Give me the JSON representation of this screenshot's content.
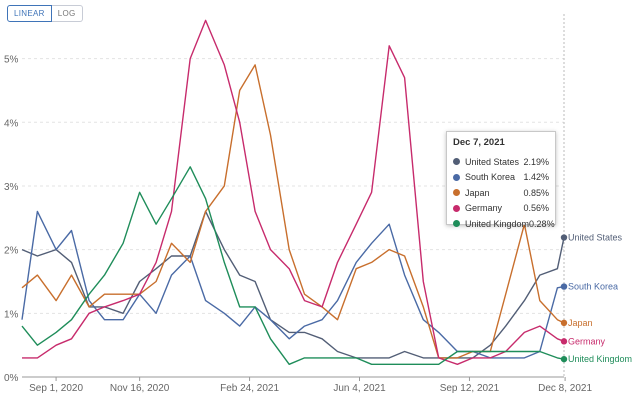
{
  "controls": {
    "linear_label": "LINEAR",
    "log_label": "LOG",
    "active": "linear"
  },
  "chart_data": {
    "type": "line",
    "x_ticks": [
      "Sep 1, 2020",
      "Nov 16, 2020",
      "Feb 24, 2021",
      "Jun 4, 2021",
      "Sep 12, 2021",
      "Dec 8, 2021"
    ],
    "y_ticks": [
      "0%",
      "1%",
      "2%",
      "3%",
      "4%",
      "5%"
    ],
    "ylim": [
      0,
      5.7
    ],
    "x": [
      "2020-08-01",
      "2020-08-15",
      "2020-09-01",
      "2020-09-15",
      "2020-10-01",
      "2020-10-15",
      "2020-11-01",
      "2020-11-16",
      "2020-12-01",
      "2020-12-15",
      "2021-01-01",
      "2021-01-15",
      "2021-02-01",
      "2021-02-15",
      "2021-03-01",
      "2021-03-15",
      "2021-04-01",
      "2021-04-15",
      "2021-05-01",
      "2021-05-15",
      "2021-06-01",
      "2021-06-15",
      "2021-07-01",
      "2021-07-15",
      "2021-08-01",
      "2021-08-15",
      "2021-09-01",
      "2021-09-15",
      "2021-10-01",
      "2021-10-15",
      "2021-11-01",
      "2021-11-15",
      "2021-12-01",
      "2021-12-07"
    ],
    "series": [
      {
        "name": "United States",
        "color": "#525e76",
        "values": [
          2.0,
          1.9,
          2.0,
          1.8,
          1.1,
          1.1,
          1.0,
          1.5,
          1.7,
          1.9,
          1.9,
          2.6,
          2.0,
          1.6,
          1.5,
          0.9,
          0.7,
          0.7,
          0.6,
          0.4,
          0.3,
          0.3,
          0.3,
          0.4,
          0.3,
          0.3,
          0.3,
          0.3,
          0.5,
          0.8,
          1.2,
          1.6,
          1.7,
          2.19
        ]
      },
      {
        "name": "South Korea",
        "color": "#4a6aa5",
        "values": [
          0.9,
          2.6,
          2.0,
          2.3,
          1.2,
          0.9,
          0.9,
          1.3,
          1.0,
          1.6,
          1.9,
          1.2,
          1.0,
          0.8,
          1.1,
          0.9,
          0.6,
          0.8,
          0.9,
          1.2,
          1.8,
          2.1,
          2.4,
          1.6,
          0.9,
          0.7,
          0.4,
          0.4,
          0.3,
          0.3,
          0.3,
          0.4,
          1.4,
          1.42
        ]
      },
      {
        "name": "Japan",
        "color": "#c86f2d",
        "values": [
          1.4,
          1.6,
          1.2,
          1.6,
          1.1,
          1.3,
          1.3,
          1.3,
          1.5,
          2.1,
          1.8,
          2.6,
          3.0,
          4.5,
          4.9,
          3.8,
          2.0,
          1.3,
          1.1,
          0.9,
          1.7,
          1.8,
          2.0,
          1.9,
          1.1,
          0.3,
          0.3,
          0.4,
          0.4,
          1.3,
          2.4,
          1.2,
          0.9,
          0.85
        ]
      },
      {
        "name": "Germany",
        "color": "#c72b6c",
        "values": [
          0.3,
          0.3,
          0.5,
          0.6,
          1.0,
          1.1,
          1.2,
          1.3,
          1.8,
          2.6,
          5.0,
          5.6,
          4.9,
          4.0,
          2.6,
          2.0,
          1.7,
          1.2,
          1.1,
          1.8,
          2.4,
          2.9,
          5.2,
          4.7,
          1.5,
          0.3,
          0.2,
          0.3,
          0.3,
          0.4,
          0.7,
          0.8,
          0.6,
          0.56
        ]
      },
      {
        "name": "United Kingdom",
        "color": "#1f8d5a",
        "values": [
          0.8,
          0.5,
          0.7,
          0.9,
          1.3,
          1.6,
          2.1,
          2.9,
          2.4,
          2.8,
          3.3,
          2.8,
          1.8,
          1.1,
          1.1,
          0.6,
          0.2,
          0.3,
          0.3,
          0.3,
          0.3,
          0.2,
          0.2,
          0.2,
          0.2,
          0.2,
          0.4,
          0.4,
          0.4,
          0.4,
          0.4,
          0.4,
          0.3,
          0.28
        ]
      }
    ]
  },
  "tooltip": {
    "date": "Dec 7, 2021",
    "rows": [
      {
        "name": "United States",
        "value": "2.19%",
        "color": "#525e76"
      },
      {
        "name": "South Korea",
        "value": "1.42%",
        "color": "#4a6aa5"
      },
      {
        "name": "Japan",
        "value": "0.85%",
        "color": "#c86f2d"
      },
      {
        "name": "Germany",
        "value": "0.56%",
        "color": "#c72b6c"
      },
      {
        "name": "United Kingdom",
        "value": "0.28%",
        "color": "#1f8d5a"
      }
    ]
  }
}
